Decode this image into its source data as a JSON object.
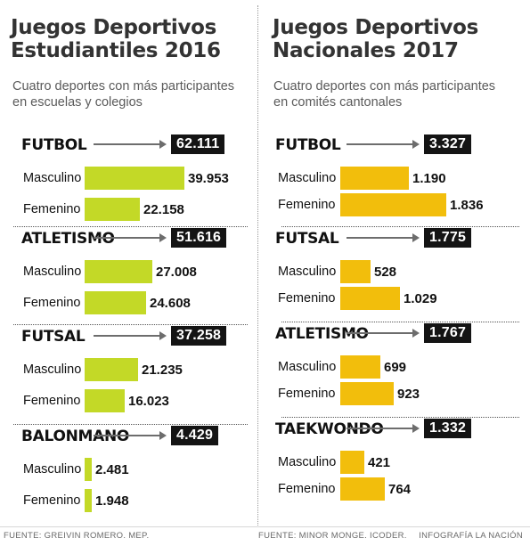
{
  "panels": [
    {
      "title": "Juegos Deportivos Estudiantiles 2016",
      "subtitle": "Cuatro deportes con más participantes en escuelas y colegios",
      "bar_color": "#c3d927",
      "source": "FUENTE: GREIVIN ROMERO. MEP."
    },
    {
      "title": "Juegos Deportivos Nacionales 2017",
      "subtitle": "Cuatro deportes con más participantes en comités cantonales",
      "bar_color": "#f2be0c",
      "source": "FUENTE:  MINOR MONGE. ICODER."
    }
  ],
  "credit": "INFOGRAFÍA LA NACIÓN",
  "chart_data": [
    {
      "type": "bar",
      "orientation": "horizontal",
      "title": "Juegos Deportivos Estudiantiles 2016",
      "subtitle": "Cuatro deportes con más participantes en escuelas y colegios",
      "sports": [
        {
          "name": "FUTBOL",
          "total": 62111,
          "total_label": "62.111",
          "bars": [
            {
              "label": "Masculino",
              "value": 39953,
              "value_label": "39.953"
            },
            {
              "label": "Femenino",
              "value": 22158,
              "value_label": "22.158"
            }
          ]
        },
        {
          "name": "ATLETISMO",
          "total": 51616,
          "total_label": "51.616",
          "bars": [
            {
              "label": "Masculino",
              "value": 27008,
              "value_label": "27.008"
            },
            {
              "label": "Femenino",
              "value": 24608,
              "value_label": "24.608"
            }
          ]
        },
        {
          "name": "FUTSAL",
          "total": 37258,
          "total_label": "37.258",
          "bars": [
            {
              "label": "Masculino",
              "value": 21235,
              "value_label": "21.235"
            },
            {
              "label": "Femenino",
              "value": 16023,
              "value_label": "16.023"
            }
          ]
        },
        {
          "name": "BALONMANO",
          "total": 4429,
          "total_label": "4.429",
          "bars": [
            {
              "label": "Masculino",
              "value": 2481,
              "value_label": "2.481"
            },
            {
              "label": "Femenino",
              "value": 1948,
              "value_label": "1.948"
            }
          ]
        }
      ]
    },
    {
      "type": "bar",
      "orientation": "horizontal",
      "title": "Juegos Deportivos Nacionales 2017",
      "subtitle": "Cuatro deportes con más participantes en comités cantonales",
      "sports": [
        {
          "name": "FUTBOL",
          "total": 3327,
          "total_label": "3.327",
          "bars": [
            {
              "label": "Masculino",
              "value": 1190,
              "value_label": "1.190"
            },
            {
              "label": "Femenino",
              "value": 1836,
              "value_label": "1.836"
            }
          ]
        },
        {
          "name": "FUTSAL",
          "total": 1775,
          "total_label": "1.775",
          "bars": [
            {
              "label": "Masculino",
              "value": 528,
              "value_label": "528"
            },
            {
              "label": "Femenino",
              "value": 1029,
              "value_label": "1.029"
            }
          ]
        },
        {
          "name": "ATLETISMO",
          "total": 1767,
          "total_label": "1.767",
          "bars": [
            {
              "label": "Masculino",
              "value": 699,
              "value_label": "699"
            },
            {
              "label": "Femenino",
              "value": 923,
              "value_label": "923"
            }
          ]
        },
        {
          "name": "TAEKWONDO",
          "total": 1332,
          "total_label": "1.332",
          "bars": [
            {
              "label": "Masculino",
              "value": 421,
              "value_label": "421"
            },
            {
              "label": "Femenino",
              "value": 764,
              "value_label": "764"
            }
          ]
        }
      ]
    }
  ]
}
